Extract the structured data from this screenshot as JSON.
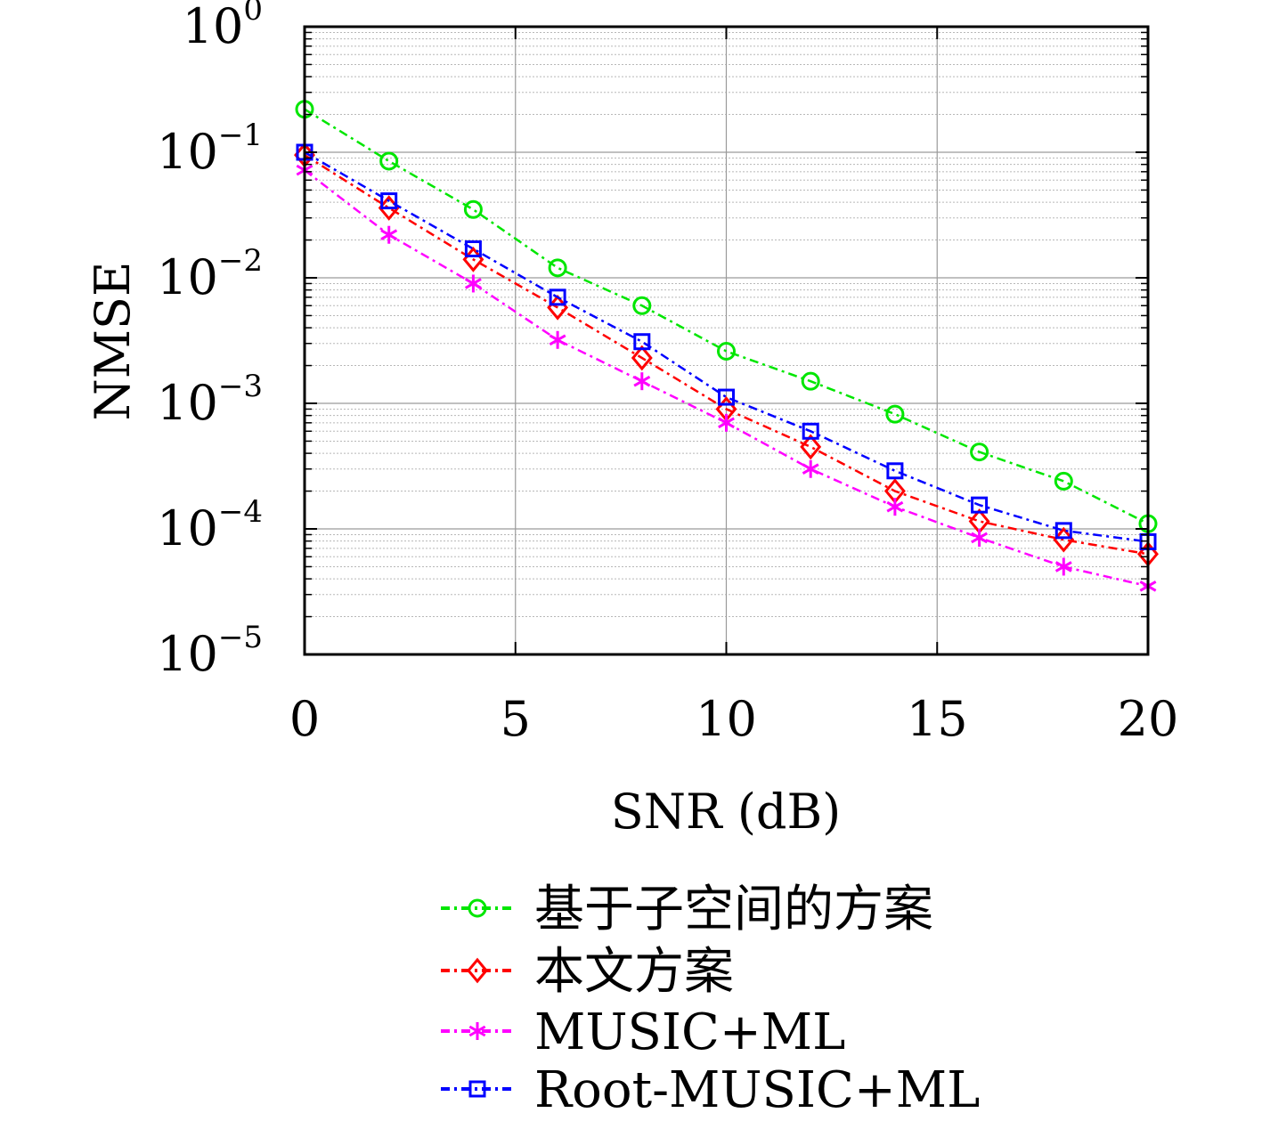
{
  "chart_data": {
    "type": "line",
    "xlabel": "SNR (dB)",
    "ylabel": "NMSE",
    "xlim": [
      0,
      20
    ],
    "ylim": [
      1e-05,
      1
    ],
    "yscale": "log",
    "grid": true,
    "x_ticks": [
      "0",
      "5",
      "10",
      "15",
      "20"
    ],
    "x_tick_values": [
      0,
      5,
      10,
      15,
      20
    ],
    "y_ticks": [
      {
        "value": 1,
        "base": "10",
        "exp": "0"
      },
      {
        "value": 0.1,
        "base": "10",
        "exp": "−1"
      },
      {
        "value": 0.01,
        "base": "10",
        "exp": "−2"
      },
      {
        "value": 0.001,
        "base": "10",
        "exp": "−3"
      },
      {
        "value": 0.0001,
        "base": "10",
        "exp": "−4"
      },
      {
        "value": 1e-05,
        "base": "10",
        "exp": "−5"
      }
    ],
    "legend_position": "below",
    "x": [
      0,
      2,
      4,
      6,
      8,
      10,
      12,
      14,
      16,
      18,
      20
    ],
    "series": [
      {
        "name": "基于子空间的方案",
        "color": "#00e600",
        "marker": "circle",
        "values": [
          0.22,
          0.085,
          0.035,
          0.012,
          0.006,
          0.0026,
          0.0015,
          0.00082,
          0.00041,
          0.00024,
          0.00011
        ]
      },
      {
        "name": "本文方案",
        "color": "#ff0000",
        "marker": "diamond",
        "values": [
          0.095,
          0.036,
          0.014,
          0.0058,
          0.0023,
          0.0009,
          0.00045,
          0.0002,
          0.000115,
          8.2e-05,
          6.3e-05
        ]
      },
      {
        "name": "MUSIC+ML",
        "color": "#ff00ff",
        "marker": "asterisk",
        "values": [
          0.072,
          0.022,
          0.009,
          0.0032,
          0.0015,
          0.0007,
          0.0003,
          0.00015,
          8.5e-05,
          5e-05,
          3.5e-05
        ]
      },
      {
        "name": "Root-MUSIC+ML",
        "color": "#0000ff",
        "marker": "square",
        "values": [
          0.1,
          0.041,
          0.017,
          0.007,
          0.0031,
          0.00112,
          0.0006,
          0.00029,
          0.000155,
          9.7e-05,
          7.9e-05
        ]
      }
    ]
  }
}
